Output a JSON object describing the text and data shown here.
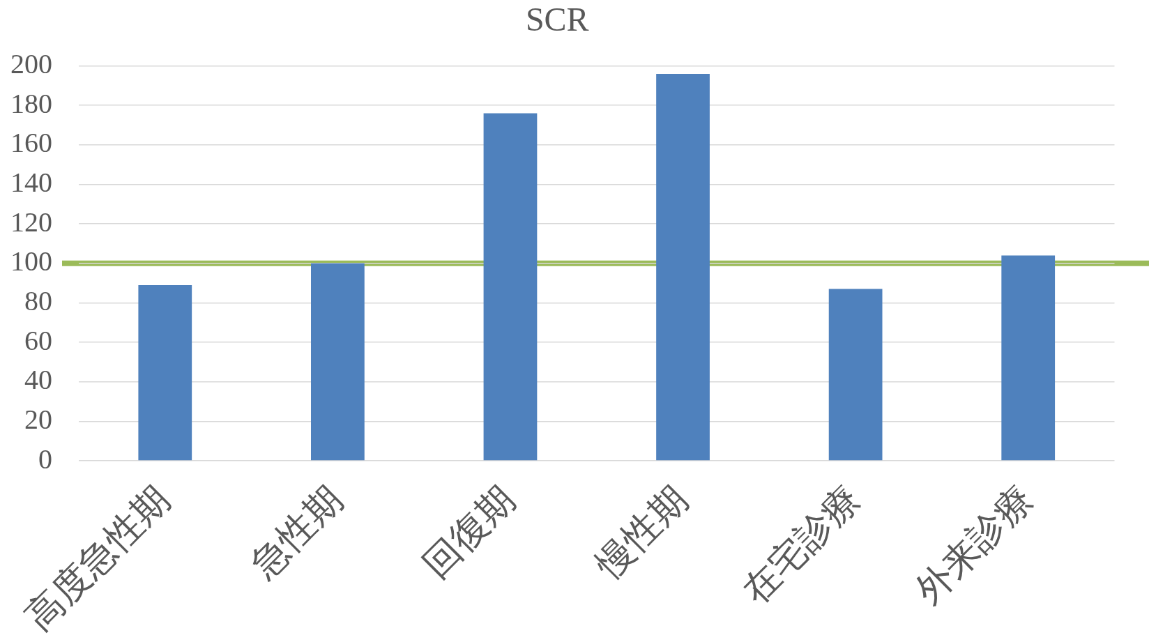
{
  "chart_data": {
    "type": "bar",
    "title": "SCR",
    "categories": [
      "高度急性期",
      "急性期",
      "回復期",
      "慢性期",
      "在宅診療",
      "外来診療"
    ],
    "values": [
      89,
      100,
      176,
      196,
      87,
      104
    ],
    "color": "#4f81bd",
    "ylim": [
      0,
      200
    ],
    "yticks": [
      0,
      20,
      40,
      60,
      80,
      100,
      120,
      140,
      160,
      180,
      200
    ],
    "grid": "y",
    "legend": false,
    "ref_lines": [
      {
        "axis": "y",
        "value": 100,
        "color": "#9bbb59"
      }
    ]
  }
}
